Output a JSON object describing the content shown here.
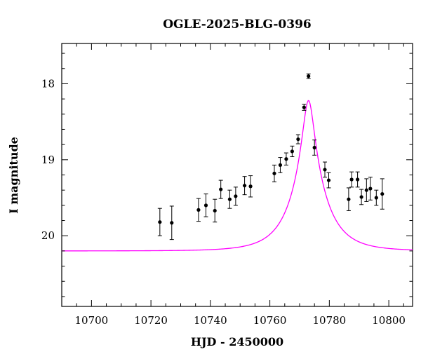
{
  "chart_data": {
    "type": "scatter",
    "title": "OGLE-2025-BLG-0396",
    "xlabel": "HJD - 2450000",
    "ylabel": "I magnitude",
    "xlim": [
      10690,
      10808
    ],
    "ylim": [
      20.93,
      17.47
    ],
    "y_inverted": true,
    "x_ticks": [
      10700,
      10720,
      10740,
      10760,
      10780,
      10800
    ],
    "x_tick_labels": [
      "10700",
      "10720",
      "10740",
      "10760",
      "10780",
      "10800"
    ],
    "y_ticks": [
      18,
      19,
      20
    ],
    "y_tick_labels": [
      "18",
      "19",
      "20"
    ],
    "grid": false,
    "colors": {
      "model": "#ff00ff",
      "points": "#000000"
    },
    "series": [
      {
        "type": "scatter_errorbar",
        "x": [
          10723.0,
          10727.0,
          10736.0,
          10738.5,
          10741.5,
          10743.5,
          10746.5,
          10748.5,
          10751.5,
          10753.5,
          10761.5,
          10763.5,
          10765.5,
          10767.5,
          10769.5,
          10771.5,
          10773.0,
          10775.0,
          10778.5,
          10779.8,
          10786.5,
          10787.5,
          10789.5,
          10790.8,
          10792.5,
          10793.8,
          10795.8,
          10797.8
        ],
        "y": [
          19.82,
          19.83,
          19.66,
          19.6,
          19.67,
          19.39,
          19.52,
          19.48,
          19.34,
          19.35,
          19.18,
          19.07,
          18.99,
          18.89,
          18.73,
          18.31,
          17.9,
          18.84,
          19.13,
          19.27,
          19.52,
          19.26,
          19.26,
          19.49,
          19.4,
          19.38,
          19.5,
          19.45
        ],
        "yerr": [
          0.18,
          0.22,
          0.15,
          0.15,
          0.15,
          0.12,
          0.12,
          0.12,
          0.12,
          0.14,
          0.11,
          0.1,
          0.08,
          0.07,
          0.06,
          0.04,
          0.03,
          0.1,
          0.1,
          0.1,
          0.15,
          0.1,
          0.1,
          0.1,
          0.15,
          0.15,
          0.1,
          0.2
        ]
      },
      {
        "type": "model_curve",
        "u0": 0.163,
        "t0": 10773.0,
        "tE": 10.8,
        "base_mag": 20.2
      }
    ]
  }
}
